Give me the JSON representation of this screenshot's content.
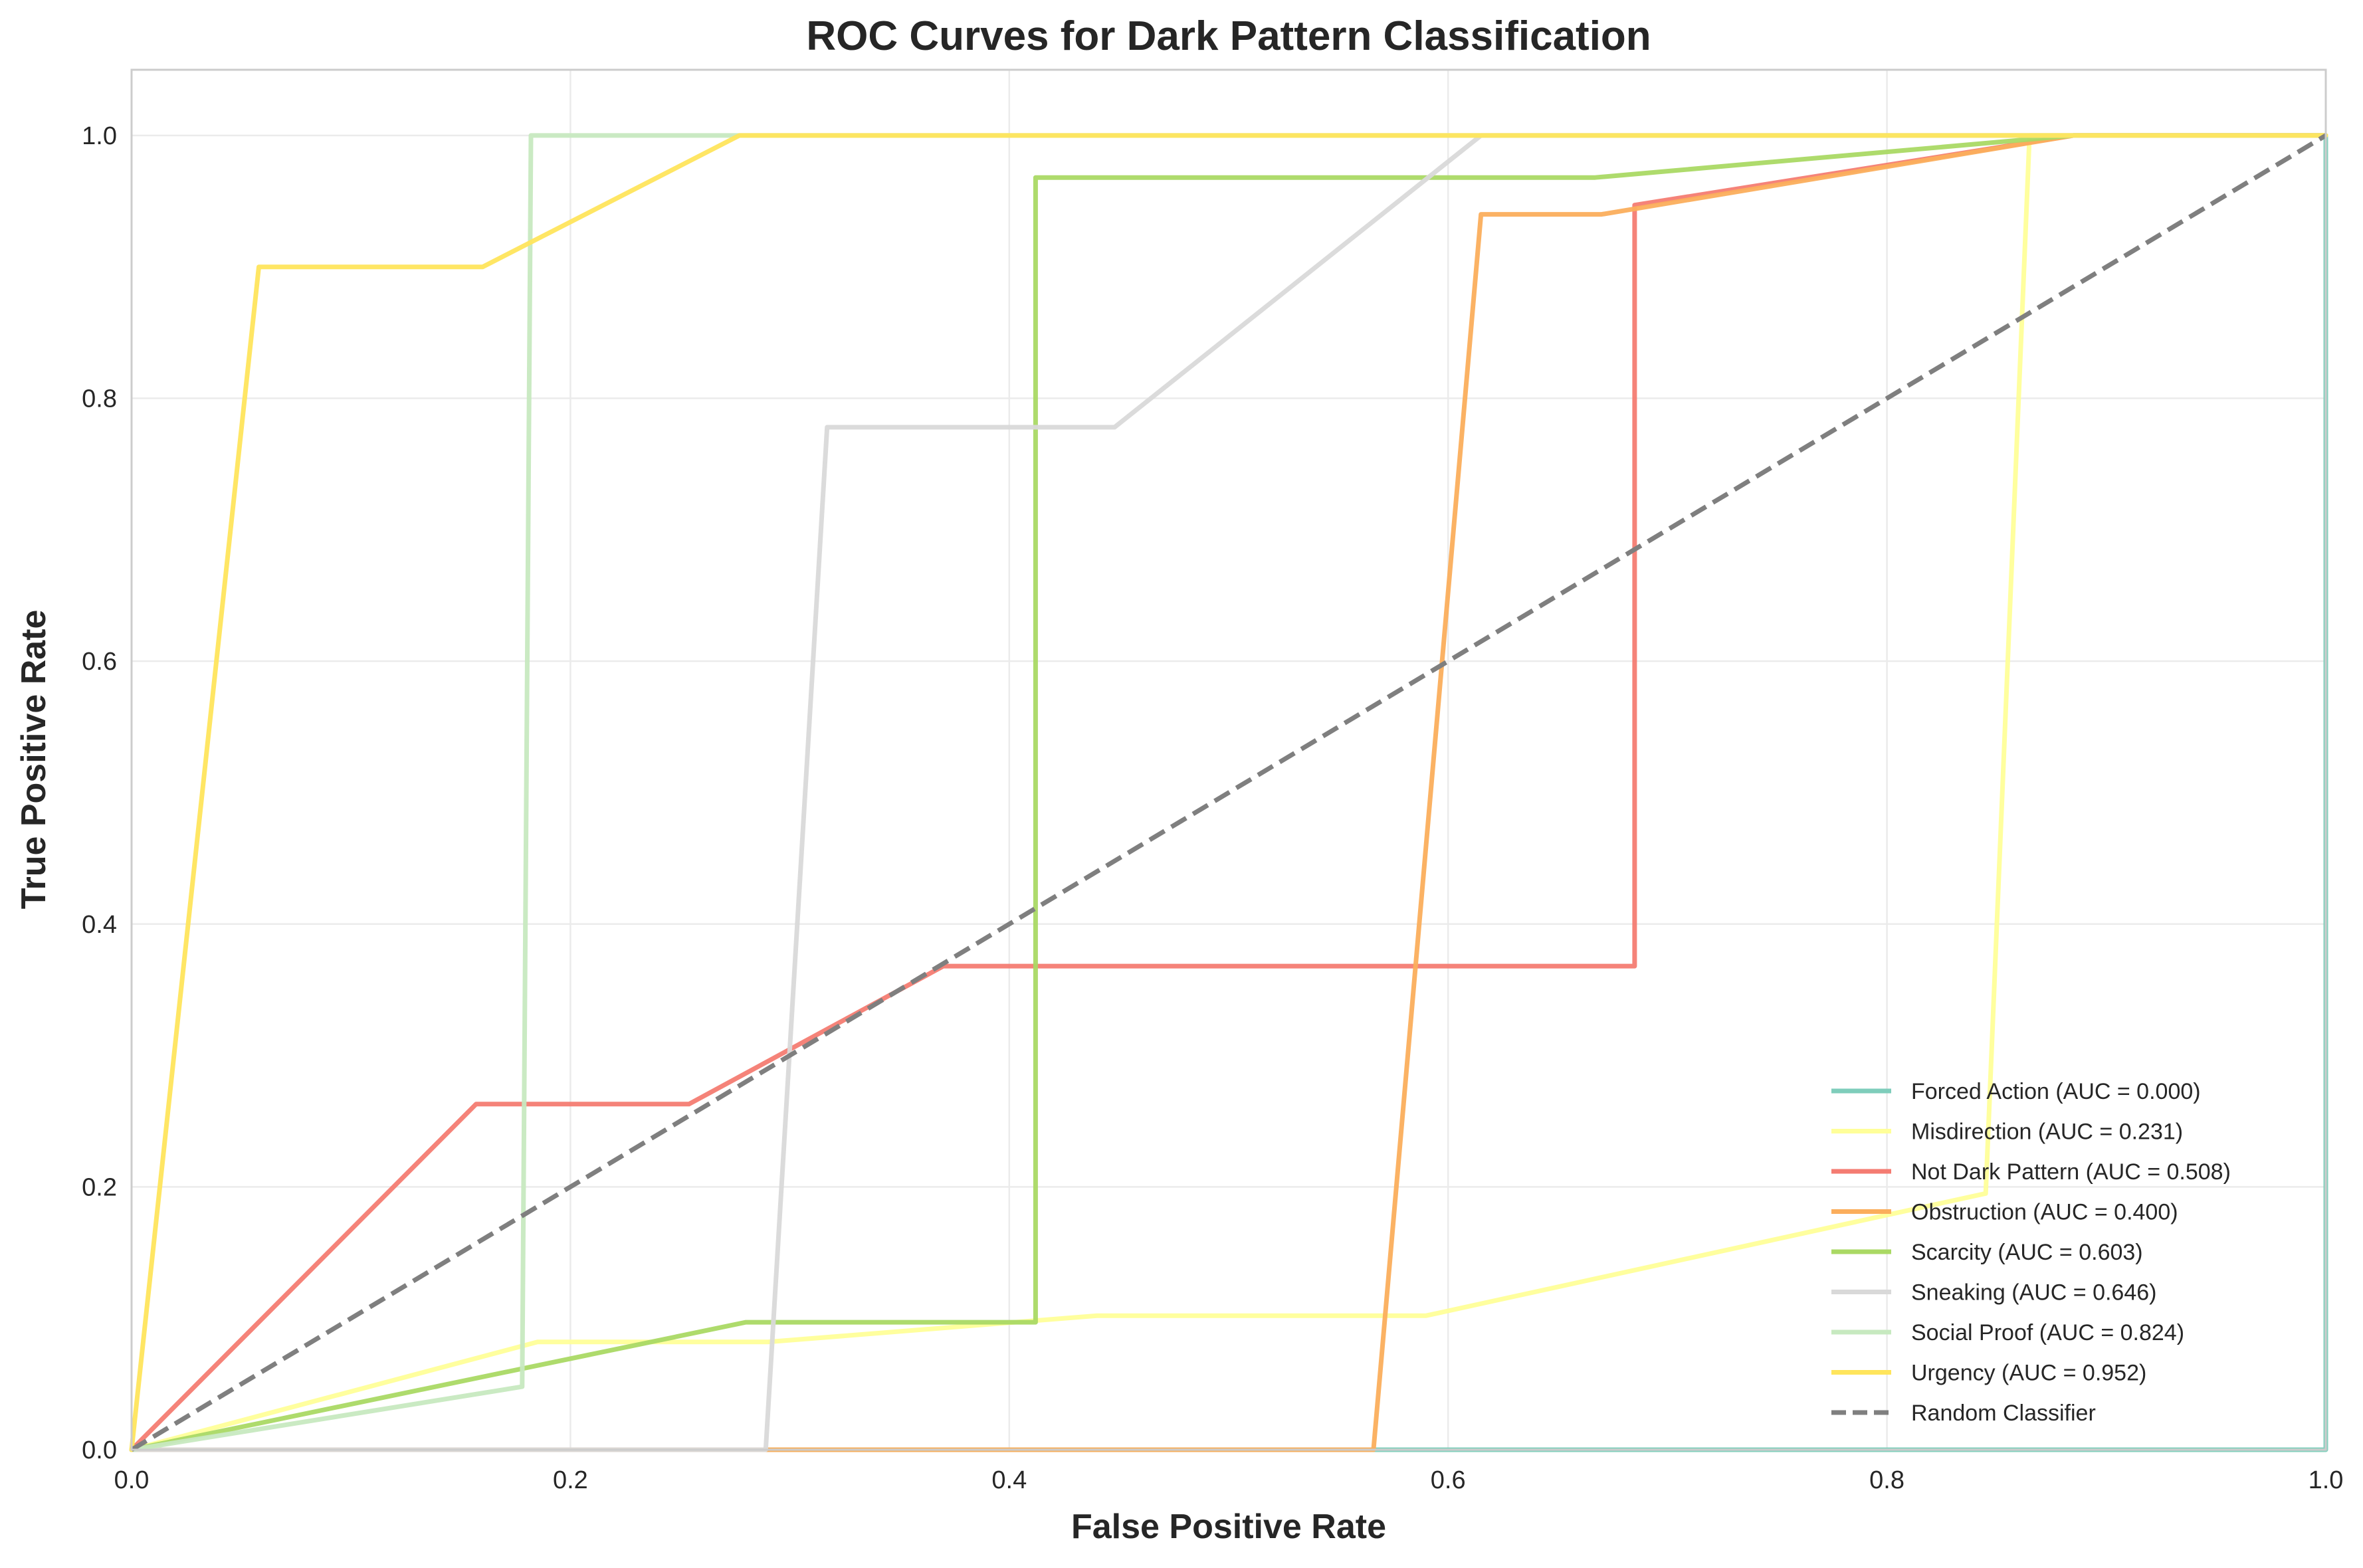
{
  "chart_data": {
    "type": "line",
    "title": "ROC Curves for Dark Pattern Classification",
    "xlabel": "False Positive Rate",
    "ylabel": "True Positive Rate",
    "xlim": [
      0.0,
      1.0
    ],
    "ylim": [
      0.0,
      1.05
    ],
    "xticks": [
      "0.0",
      "0.2",
      "0.4",
      "0.6",
      "0.8",
      "1.0"
    ],
    "yticks": [
      "0.0",
      "0.2",
      "0.4",
      "0.6",
      "0.8",
      "1.0"
    ],
    "grid": true,
    "legend_position": "lower right",
    "series": [
      {
        "name": "Forced Action (AUC = 0.000)",
        "color": "#7fcdbb",
        "points": [
          [
            0,
            0
          ],
          [
            1,
            0
          ],
          [
            1,
            1
          ]
        ]
      },
      {
        "name": "Misdirection (AUC = 0.231)",
        "color": "#ffff99",
        "points": [
          [
            0,
            0
          ],
          [
            0.185,
            0.082
          ],
          [
            0.29,
            0.082
          ],
          [
            0.44,
            0.102
          ],
          [
            0.59,
            0.102
          ],
          [
            0.845,
            0.195
          ],
          [
            0.865,
            1.0
          ],
          [
            1,
            1
          ]
        ]
      },
      {
        "name": "Not Dark Pattern (AUC = 0.508)",
        "color": "#f47c72",
        "points": [
          [
            0,
            0
          ],
          [
            0.157,
            0.263
          ],
          [
            0.254,
            0.263
          ],
          [
            0.37,
            0.368
          ],
          [
            0.685,
            0.368
          ],
          [
            0.685,
            0.947
          ],
          [
            0.885,
            1.0
          ],
          [
            1,
            1
          ]
        ]
      },
      {
        "name": "Obstruction (AUC = 0.400)",
        "color": "#fbae5c",
        "points": [
          [
            0,
            0
          ],
          [
            0.566,
            0
          ],
          [
            0.615,
            0.94
          ],
          [
            0.67,
            0.94
          ],
          [
            0.885,
            1.0
          ],
          [
            1,
            1
          ]
        ]
      },
      {
        "name": "Scarcity (AUC = 0.603)",
        "color": "#aad964",
        "points": [
          [
            0,
            0
          ],
          [
            0.28,
            0.097
          ],
          [
            0.412,
            0.097
          ],
          [
            0.412,
            0.968
          ],
          [
            0.667,
            0.968
          ],
          [
            0.885,
            1.0
          ],
          [
            1,
            1
          ]
        ]
      },
      {
        "name": "Sneaking (AUC = 0.646)",
        "color": "#d9d9d9",
        "points": [
          [
            0,
            0
          ],
          [
            0.289,
            0
          ],
          [
            0.317,
            0.778
          ],
          [
            0.448,
            0.778
          ],
          [
            0.615,
            1.0
          ],
          [
            1,
            1
          ]
        ]
      },
      {
        "name": "Social Proof (AUC = 0.824)",
        "color": "#c7e9c0",
        "points": [
          [
            0,
            0
          ],
          [
            0.178,
            0.048
          ],
          [
            0.182,
            1.0
          ],
          [
            1,
            1
          ]
        ]
      },
      {
        "name": "Urgency (AUC = 0.952)",
        "color": "#ffe55c",
        "points": [
          [
            0,
            0
          ],
          [
            0.058,
            0.9
          ],
          [
            0.16,
            0.9
          ],
          [
            0.277,
            1.0
          ],
          [
            1,
            1
          ]
        ]
      },
      {
        "name": "Random Classifier",
        "color": "#7f7f7f",
        "dashed": true,
        "points": [
          [
            0,
            0
          ],
          [
            1,
            1
          ]
        ]
      }
    ]
  }
}
